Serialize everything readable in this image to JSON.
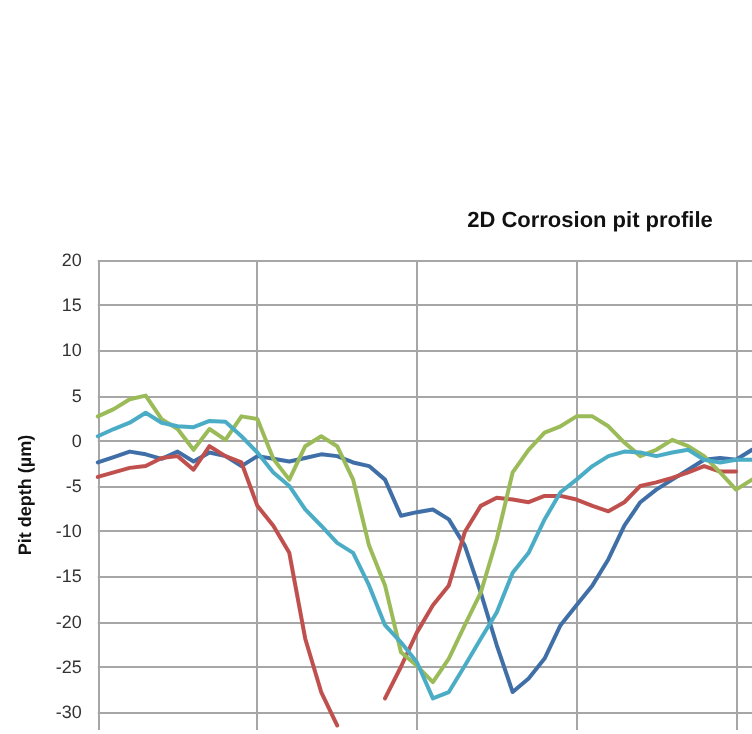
{
  "chart_data": {
    "type": "line",
    "title": "2D Corrosion pit profile",
    "ylabel": "Pit depth (µm)",
    "categories": [
      null,
      null,
      null,
      null,
      null,
      null,
      null,
      null,
      null,
      null,
      null,
      null,
      null,
      null,
      null,
      null,
      null,
      null,
      null,
      null,
      null,
      null,
      null,
      null,
      null,
      null,
      null,
      null,
      null,
      null,
      null,
      null,
      null,
      null,
      null,
      null,
      null,
      null,
      null,
      null,
      null,
      null
    ],
    "series": [
      {
        "color": "#3f6fa6",
        "values": [
          -2.4,
          -1.8,
          -1.2,
          -1.5,
          -2,
          -1.2,
          -2.3,
          -1.3,
          -1.7,
          -2.8,
          -1.7,
          -2,
          -2.3,
          -1.9,
          -1.5,
          -1.7,
          -2.4,
          -2.8,
          -4.3,
          -8.3,
          -7.9,
          -7.6,
          -8.7,
          -11.6,
          -16.8,
          -22.6,
          -27.8,
          -26.3,
          -24.1,
          -20.4,
          -18.2,
          -16,
          -13.1,
          -9.4,
          -6.8,
          -5.4,
          -4.3,
          -3.2,
          -2.1,
          -1.9,
          -2.1,
          -1
        ]
      },
      {
        "color": "#c0504d",
        "values": [
          -4,
          -3.5,
          -3,
          -2.8,
          -1.9,
          -1.7,
          -3.2,
          -0.6,
          -1.7,
          -2.4,
          -7.2,
          -9.4,
          -12.4,
          -21.9,
          -27.8,
          -31.5,
          null,
          null,
          -28.5,
          -25,
          -21.2,
          -18.2,
          -16,
          -10.1,
          -7.2,
          -6.3,
          -6.5,
          -6.8,
          -6.1,
          -6.1,
          -6.5,
          -7.2,
          -7.8,
          -6.8,
          -5,
          -4.6,
          -4.1,
          -3.5,
          -2.8,
          -3.4,
          -3.4,
          null
        ]
      },
      {
        "color": "#9bbb59",
        "values": [
          2.7,
          3.5,
          4.6,
          5,
          2.4,
          1.3,
          -1,
          1.3,
          0.1,
          2.7,
          2.4,
          -2,
          -4.3,
          -0.6,
          0.5,
          -0.6,
          -4.3,
          -11.6,
          -16,
          -23.4,
          -24.9,
          -26.7,
          -24.1,
          -20.4,
          -16.8,
          -10.9,
          -3.5,
          -1,
          0.9,
          1.6,
          2.7,
          2.7,
          1.6,
          -0.2,
          -1.7,
          -1,
          0.1,
          -0.6,
          -1.7,
          -3.5,
          -5.4,
          -4.3
        ]
      },
      {
        "color": "#4bacc6",
        "values": [
          0.5,
          1.3,
          2,
          3.1,
          2,
          1.6,
          1.5,
          2.2,
          2.1,
          0.5,
          -1.3,
          -3.5,
          -5,
          -7.6,
          -9.4,
          -11.3,
          -12.4,
          -16,
          -20.4,
          -22.3,
          -24.5,
          -28.5,
          -27.8,
          -24.9,
          -21.9,
          -19,
          -14.6,
          -12.4,
          -8.7,
          -5.7,
          -4.3,
          -2.8,
          -1.7,
          -1.2,
          -1.3,
          -1.7,
          -1.3,
          -1,
          -2.1,
          -2.4,
          -2.1,
          -2.1
        ]
      }
    ],
    "ylim": [
      -32,
      20
    ],
    "yticks": [
      20,
      15,
      10,
      5,
      0,
      -5,
      -10,
      -15,
      -20,
      -25,
      -30
    ],
    "grid": true,
    "tick_labels": "y",
    "marker": "none",
    "line_style": "solid"
  }
}
